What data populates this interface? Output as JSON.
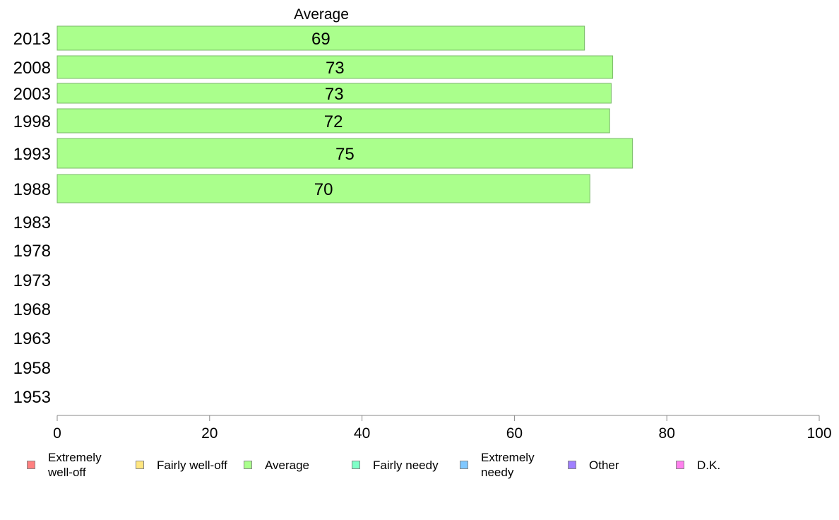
{
  "chart_data": {
    "type": "bar",
    "orientation": "horizontal",
    "title": "",
    "series_title": "Average",
    "categories": [
      "2013",
      "2008",
      "2003",
      "1998",
      "1993",
      "1988",
      "1983",
      "1978",
      "1973",
      "1968",
      "1963",
      "1958",
      "1953"
    ],
    "series": [
      {
        "name": "Average",
        "values": [
          69.2,
          72.9,
          72.7,
          72.5,
          75.5,
          69.9,
          null,
          null,
          null,
          null,
          null,
          null,
          null
        ]
      }
    ],
    "data_labels": [
      "69",
      "73",
      "73",
      "72",
      "75",
      "70",
      "",
      "",
      "",
      "",
      "",
      "",
      ""
    ],
    "xlim": [
      0,
      100
    ],
    "xticks": [
      "0",
      "20",
      "40",
      "60",
      "80",
      "100"
    ],
    "xlabel": "",
    "ylabel": "",
    "grid": false,
    "legend_position": "bottom",
    "legend": [
      {
        "label": "Extremely well-off",
        "color": "#ff8080"
      },
      {
        "label": "Fairly well-off",
        "color": "#ffe680"
      },
      {
        "label": "Average",
        "color": "#aaff8c"
      },
      {
        "label": "Fairly needy",
        "color": "#80ffc8"
      },
      {
        "label": "Extremely needy",
        "color": "#80c8ff"
      },
      {
        "label": "Other",
        "color": "#a080ff"
      },
      {
        "label": "D.K.",
        "color": "#ff80ee"
      }
    ],
    "bar_color": "#aaff8c",
    "bar_border_color": "#7bb86a",
    "axis_color": "#888888"
  }
}
